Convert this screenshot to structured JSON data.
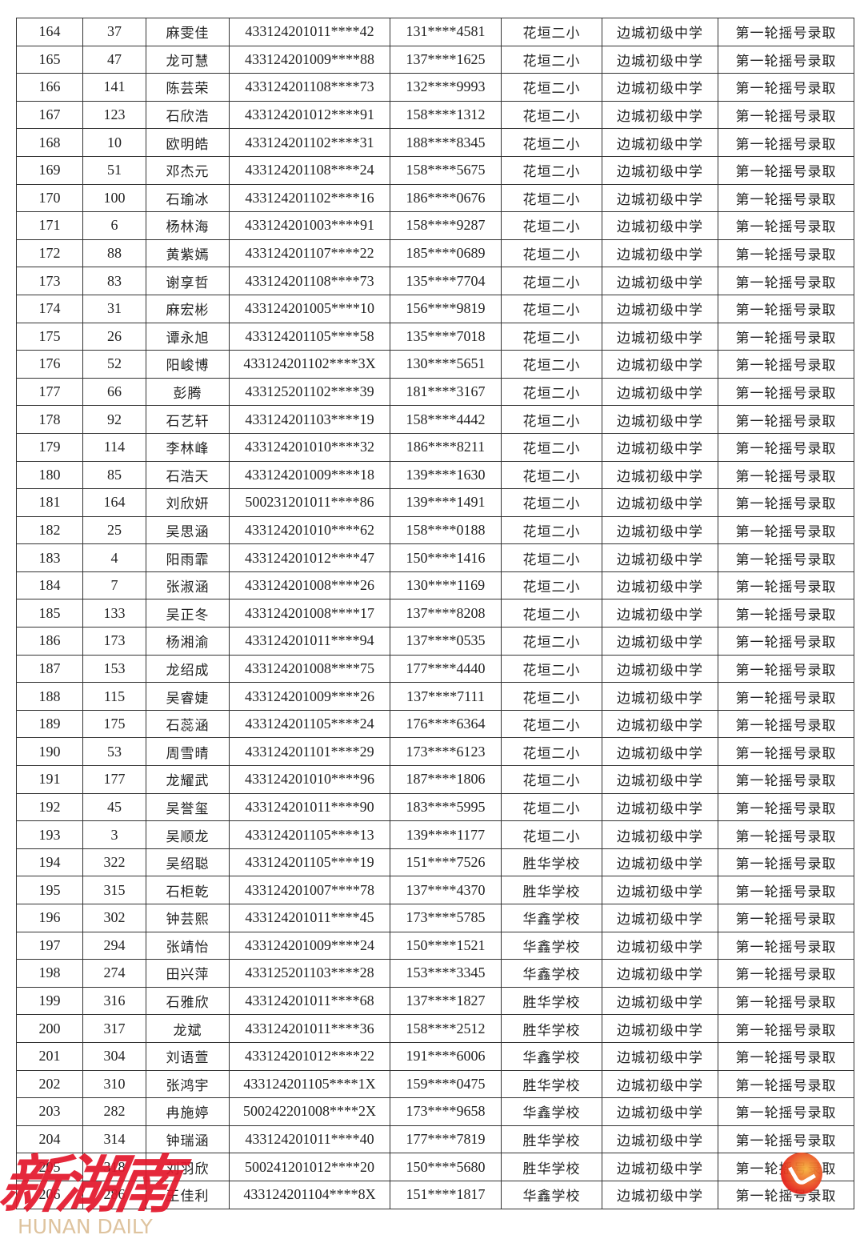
{
  "table": {
    "rows": [
      [
        "164",
        "37",
        "麻雯佳",
        "433124201011****42",
        "131****4581",
        "花垣二小",
        "边城初级中学",
        "第一轮摇号录取"
      ],
      [
        "165",
        "47",
        "龙可慧",
        "433124201009****88",
        "137****1625",
        "花垣二小",
        "边城初级中学",
        "第一轮摇号录取"
      ],
      [
        "166",
        "141",
        "陈芸荣",
        "433124201108****73",
        "132****9993",
        "花垣二小",
        "边城初级中学",
        "第一轮摇号录取"
      ],
      [
        "167",
        "123",
        "石欣浩",
        "433124201012****91",
        "158****1312",
        "花垣二小",
        "边城初级中学",
        "第一轮摇号录取"
      ],
      [
        "168",
        "10",
        "欧明皓",
        "433124201102****31",
        "188****8345",
        "花垣二小",
        "边城初级中学",
        "第一轮摇号录取"
      ],
      [
        "169",
        "51",
        "邓杰元",
        "433124201108****24",
        "158****5675",
        "花垣二小",
        "边城初级中学",
        "第一轮摇号录取"
      ],
      [
        "170",
        "100",
        "石瑜冰",
        "433124201102****16",
        "186****0676",
        "花垣二小",
        "边城初级中学",
        "第一轮摇号录取"
      ],
      [
        "171",
        "6",
        "杨林海",
        "433124201003****91",
        "158****9287",
        "花垣二小",
        "边城初级中学",
        "第一轮摇号录取"
      ],
      [
        "172",
        "88",
        "黄紫嫣",
        "433124201107****22",
        "185****0689",
        "花垣二小",
        "边城初级中学",
        "第一轮摇号录取"
      ],
      [
        "173",
        "83",
        "谢享哲",
        "433124201108****73",
        "135****7704",
        "花垣二小",
        "边城初级中学",
        "第一轮摇号录取"
      ],
      [
        "174",
        "31",
        "麻宏彬",
        "433124201005****10",
        "156****9819",
        "花垣二小",
        "边城初级中学",
        "第一轮摇号录取"
      ],
      [
        "175",
        "26",
        "谭永旭",
        "433124201105****58",
        "135****7018",
        "花垣二小",
        "边城初级中学",
        "第一轮摇号录取"
      ],
      [
        "176",
        "52",
        "阳峻博",
        "433124201102****3X",
        "130****5651",
        "花垣二小",
        "边城初级中学",
        "第一轮摇号录取"
      ],
      [
        "177",
        "66",
        "彭腾",
        "433125201102****39",
        "181****3167",
        "花垣二小",
        "边城初级中学",
        "第一轮摇号录取"
      ],
      [
        "178",
        "92",
        "石艺轩",
        "433124201103****19",
        "158****4442",
        "花垣二小",
        "边城初级中学",
        "第一轮摇号录取"
      ],
      [
        "179",
        "114",
        "李林峰",
        "433124201010****32",
        "186****8211",
        "花垣二小",
        "边城初级中学",
        "第一轮摇号录取"
      ],
      [
        "180",
        "85",
        "石浩天",
        "433124201009****18",
        "139****1630",
        "花垣二小",
        "边城初级中学",
        "第一轮摇号录取"
      ],
      [
        "181",
        "164",
        "刘欣妍",
        "500231201011****86",
        "139****1491",
        "花垣二小",
        "边城初级中学",
        "第一轮摇号录取"
      ],
      [
        "182",
        "25",
        "吴思涵",
        "433124201010****62",
        "158****0188",
        "花垣二小",
        "边城初级中学",
        "第一轮摇号录取"
      ],
      [
        "183",
        "4",
        "阳雨霏",
        "433124201012****47",
        "150****1416",
        "花垣二小",
        "边城初级中学",
        "第一轮摇号录取"
      ],
      [
        "184",
        "7",
        "张淑涵",
        "433124201008****26",
        "130****1169",
        "花垣二小",
        "边城初级中学",
        "第一轮摇号录取"
      ],
      [
        "185",
        "133",
        "吴正冬",
        "433124201008****17",
        "137****8208",
        "花垣二小",
        "边城初级中学",
        "第一轮摇号录取"
      ],
      [
        "186",
        "173",
        "杨湘渝",
        "433124201011****94",
        "137****0535",
        "花垣二小",
        "边城初级中学",
        "第一轮摇号录取"
      ],
      [
        "187",
        "153",
        "龙绍成",
        "433124201008****75",
        "177****4440",
        "花垣二小",
        "边城初级中学",
        "第一轮摇号录取"
      ],
      [
        "188",
        "115",
        "吴睿婕",
        "433124201009****26",
        "137****7111",
        "花垣二小",
        "边城初级中学",
        "第一轮摇号录取"
      ],
      [
        "189",
        "175",
        "石蕊涵",
        "433124201105****24",
        "176****6364",
        "花垣二小",
        "边城初级中学",
        "第一轮摇号录取"
      ],
      [
        "190",
        "53",
        "周雪晴",
        "433124201101****29",
        "173****6123",
        "花垣二小",
        "边城初级中学",
        "第一轮摇号录取"
      ],
      [
        "191",
        "177",
        "龙耀武",
        "433124201010****96",
        "187****1806",
        "花垣二小",
        "边城初级中学",
        "第一轮摇号录取"
      ],
      [
        "192",
        "45",
        "吴誉玺",
        "433124201011****90",
        "183****5995",
        "花垣二小",
        "边城初级中学",
        "第一轮摇号录取"
      ],
      [
        "193",
        "3",
        "吴顺龙",
        "433124201105****13",
        "139****1177",
        "花垣二小",
        "边城初级中学",
        "第一轮摇号录取"
      ],
      [
        "194",
        "322",
        "吴绍聪",
        "433124201105****19",
        "151****7526",
        "胜华学校",
        "边城初级中学",
        "第一轮摇号录取"
      ],
      [
        "195",
        "315",
        "石柜乾",
        "433124201007****78",
        "137****4370",
        "胜华学校",
        "边城初级中学",
        "第一轮摇号录取"
      ],
      [
        "196",
        "302",
        "钟芸熙",
        "433124201011****45",
        "173****5785",
        "华鑫学校",
        "边城初级中学",
        "第一轮摇号录取"
      ],
      [
        "197",
        "294",
        "张靖怡",
        "433124201009****24",
        "150****1521",
        "华鑫学校",
        "边城初级中学",
        "第一轮摇号录取"
      ],
      [
        "198",
        "274",
        "田兴萍",
        "433125201103****28",
        "153****3345",
        "华鑫学校",
        "边城初级中学",
        "第一轮摇号录取"
      ],
      [
        "199",
        "316",
        "石雅欣",
        "433124201011****68",
        "137****1827",
        "胜华学校",
        "边城初级中学",
        "第一轮摇号录取"
      ],
      [
        "200",
        "317",
        "龙斌",
        "433124201011****36",
        "158****2512",
        "胜华学校",
        "边城初级中学",
        "第一轮摇号录取"
      ],
      [
        "201",
        "304",
        "刘语萱",
        "433124201012****22",
        "191****6006",
        "华鑫学校",
        "边城初级中学",
        "第一轮摇号录取"
      ],
      [
        "202",
        "310",
        "张鸿宇",
        "433124201105****1X",
        "159****0475",
        "胜华学校",
        "边城初级中学",
        "第一轮摇号录取"
      ],
      [
        "203",
        "282",
        "冉施婷",
        "500242201008****2X",
        "173****9658",
        "华鑫学校",
        "边城初级中学",
        "第一轮摇号录取"
      ],
      [
        "204",
        "314",
        "钟瑞涵",
        "433124201011****40",
        "177****7819",
        "胜华学校",
        "边城初级中学",
        "第一轮摇号录取"
      ],
      [
        "205",
        "318",
        "刘羽欣",
        "500241201012****20",
        "150****5680",
        "胜华学校",
        "边城初级中学",
        "第一轮摇号录取"
      ],
      [
        "206",
        "286",
        "王佳利",
        "433124201104****8X",
        "151****1817",
        "华鑫学校",
        "边城初级中学",
        "第一轮摇号录取"
      ]
    ]
  },
  "watermark": {
    "chinese": "新湖南",
    "english": "HUNAN DAILY",
    "brand_color": "#e3162b"
  }
}
